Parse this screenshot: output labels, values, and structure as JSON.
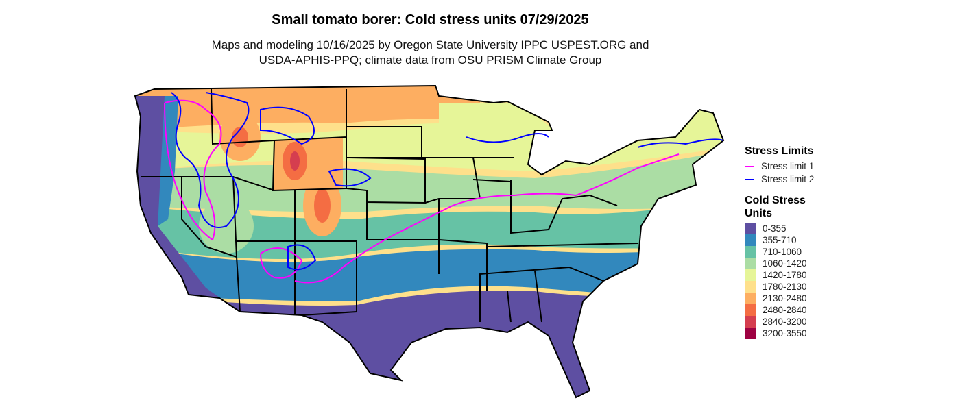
{
  "title": "Small tomato borer: Cold stress units 07/29/2025",
  "subtitle_line1": "Maps and modeling 10/16/2025 by Oregon State University IPPC USPEST.ORG and",
  "subtitle_line2": "USDA-APHIS-PPQ; climate data from OSU PRISM Climate Group",
  "legend": {
    "stress_title": "Stress Limits",
    "stress_items": [
      {
        "label": "Stress limit 1",
        "color": "#ff00ff"
      },
      {
        "label": "Stress limit 2",
        "color": "#0000ff"
      }
    ],
    "csu_title_line1": "Cold Stress",
    "csu_title_line2": "Units",
    "csu_items": [
      {
        "label": "0-355",
        "color": "#5E4FA2"
      },
      {
        "label": "355-710",
        "color": "#3288BD"
      },
      {
        "label": "710-1060",
        "color": "#66C2A5"
      },
      {
        "label": "1060-1420",
        "color": "#ABDDA4"
      },
      {
        "label": "1420-1780",
        "color": "#E6F598"
      },
      {
        "label": "1780-2130",
        "color": "#FEE08B"
      },
      {
        "label": "2130-2480",
        "color": "#FDAE61"
      },
      {
        "label": "2480-2840",
        "color": "#F46D43"
      },
      {
        "label": "2840-3200",
        "color": "#D53E4F"
      },
      {
        "label": "3200-3550",
        "color": "#9E0142"
      }
    ]
  }
}
